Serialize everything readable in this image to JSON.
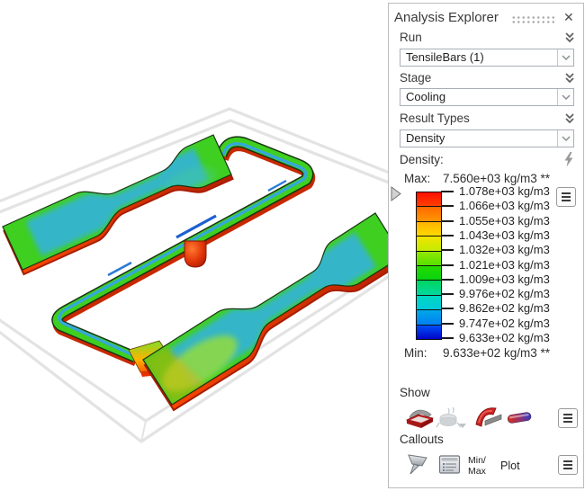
{
  "panel": {
    "title": "Analysis Explorer",
    "sections": [
      {
        "label": "Run",
        "value": "TensileBars (1)"
      },
      {
        "label": "Stage",
        "value": "Cooling"
      },
      {
        "label": "Result Types",
        "value": "Density"
      }
    ]
  },
  "legend": {
    "title": "Density:",
    "max_label": "Max:",
    "max_value": "7.560e+03 kg/m3 **",
    "min_label": "Min:",
    "min_value": "9.633e+02 kg/m3 **",
    "ticks": [
      "1.078e+03 kg/m3",
      "1.066e+03 kg/m3",
      "1.055e+03 kg/m3",
      "1.043e+03 kg/m3",
      "1.032e+03 kg/m3",
      "1.021e+03 kg/m3",
      "1.009e+03 kg/m3",
      "9.976e+02 kg/m3",
      "9.862e+02 kg/m3",
      "9.747e+02 kg/m3",
      "9.633e+02 kg/m3"
    ],
    "band_colors": [
      [
        "#ff0f00",
        "#ff4000"
      ],
      [
        "#ff6a00",
        "#ff9600"
      ],
      [
        "#ffb300",
        "#ffd800"
      ],
      [
        "#f2e500",
        "#c3ea00"
      ],
      [
        "#94e800",
        "#55e100"
      ],
      [
        "#27da00",
        "#06d410"
      ],
      [
        "#00d55e",
        "#00d9a0"
      ],
      [
        "#00d8c0",
        "#00c9dd"
      ],
      [
        "#00a8e8",
        "#0080f2"
      ],
      [
        "#0050f8",
        "#0004c8"
      ]
    ]
  },
  "show": {
    "label": "Show"
  },
  "callouts": {
    "label": "Callouts",
    "minmax_line1": "Min/",
    "minmax_line2": "Max",
    "plot_label": "Plot"
  },
  "icons": {
    "close": "✕",
    "names": [
      "drag-dots",
      "close",
      "collapse-chevrons",
      "dropdown-arrow",
      "lightning",
      "legend-slider-triangle",
      "menu",
      "solid-part",
      "transparent-part",
      "bent-part",
      "probe-bar",
      "flag-callout",
      "note-callout"
    ]
  },
  "scene": {
    "colors": {
      "part_top_core": "#35b6c8",
      "part_edge": "#3fcf20",
      "part_side_red": "#d22b00",
      "runner_core_blue": "#35a8d8",
      "sprue": "#e23408",
      "mold_plate_outline": "#e3e3e3",
      "outline_dark": "#173512"
    }
  }
}
